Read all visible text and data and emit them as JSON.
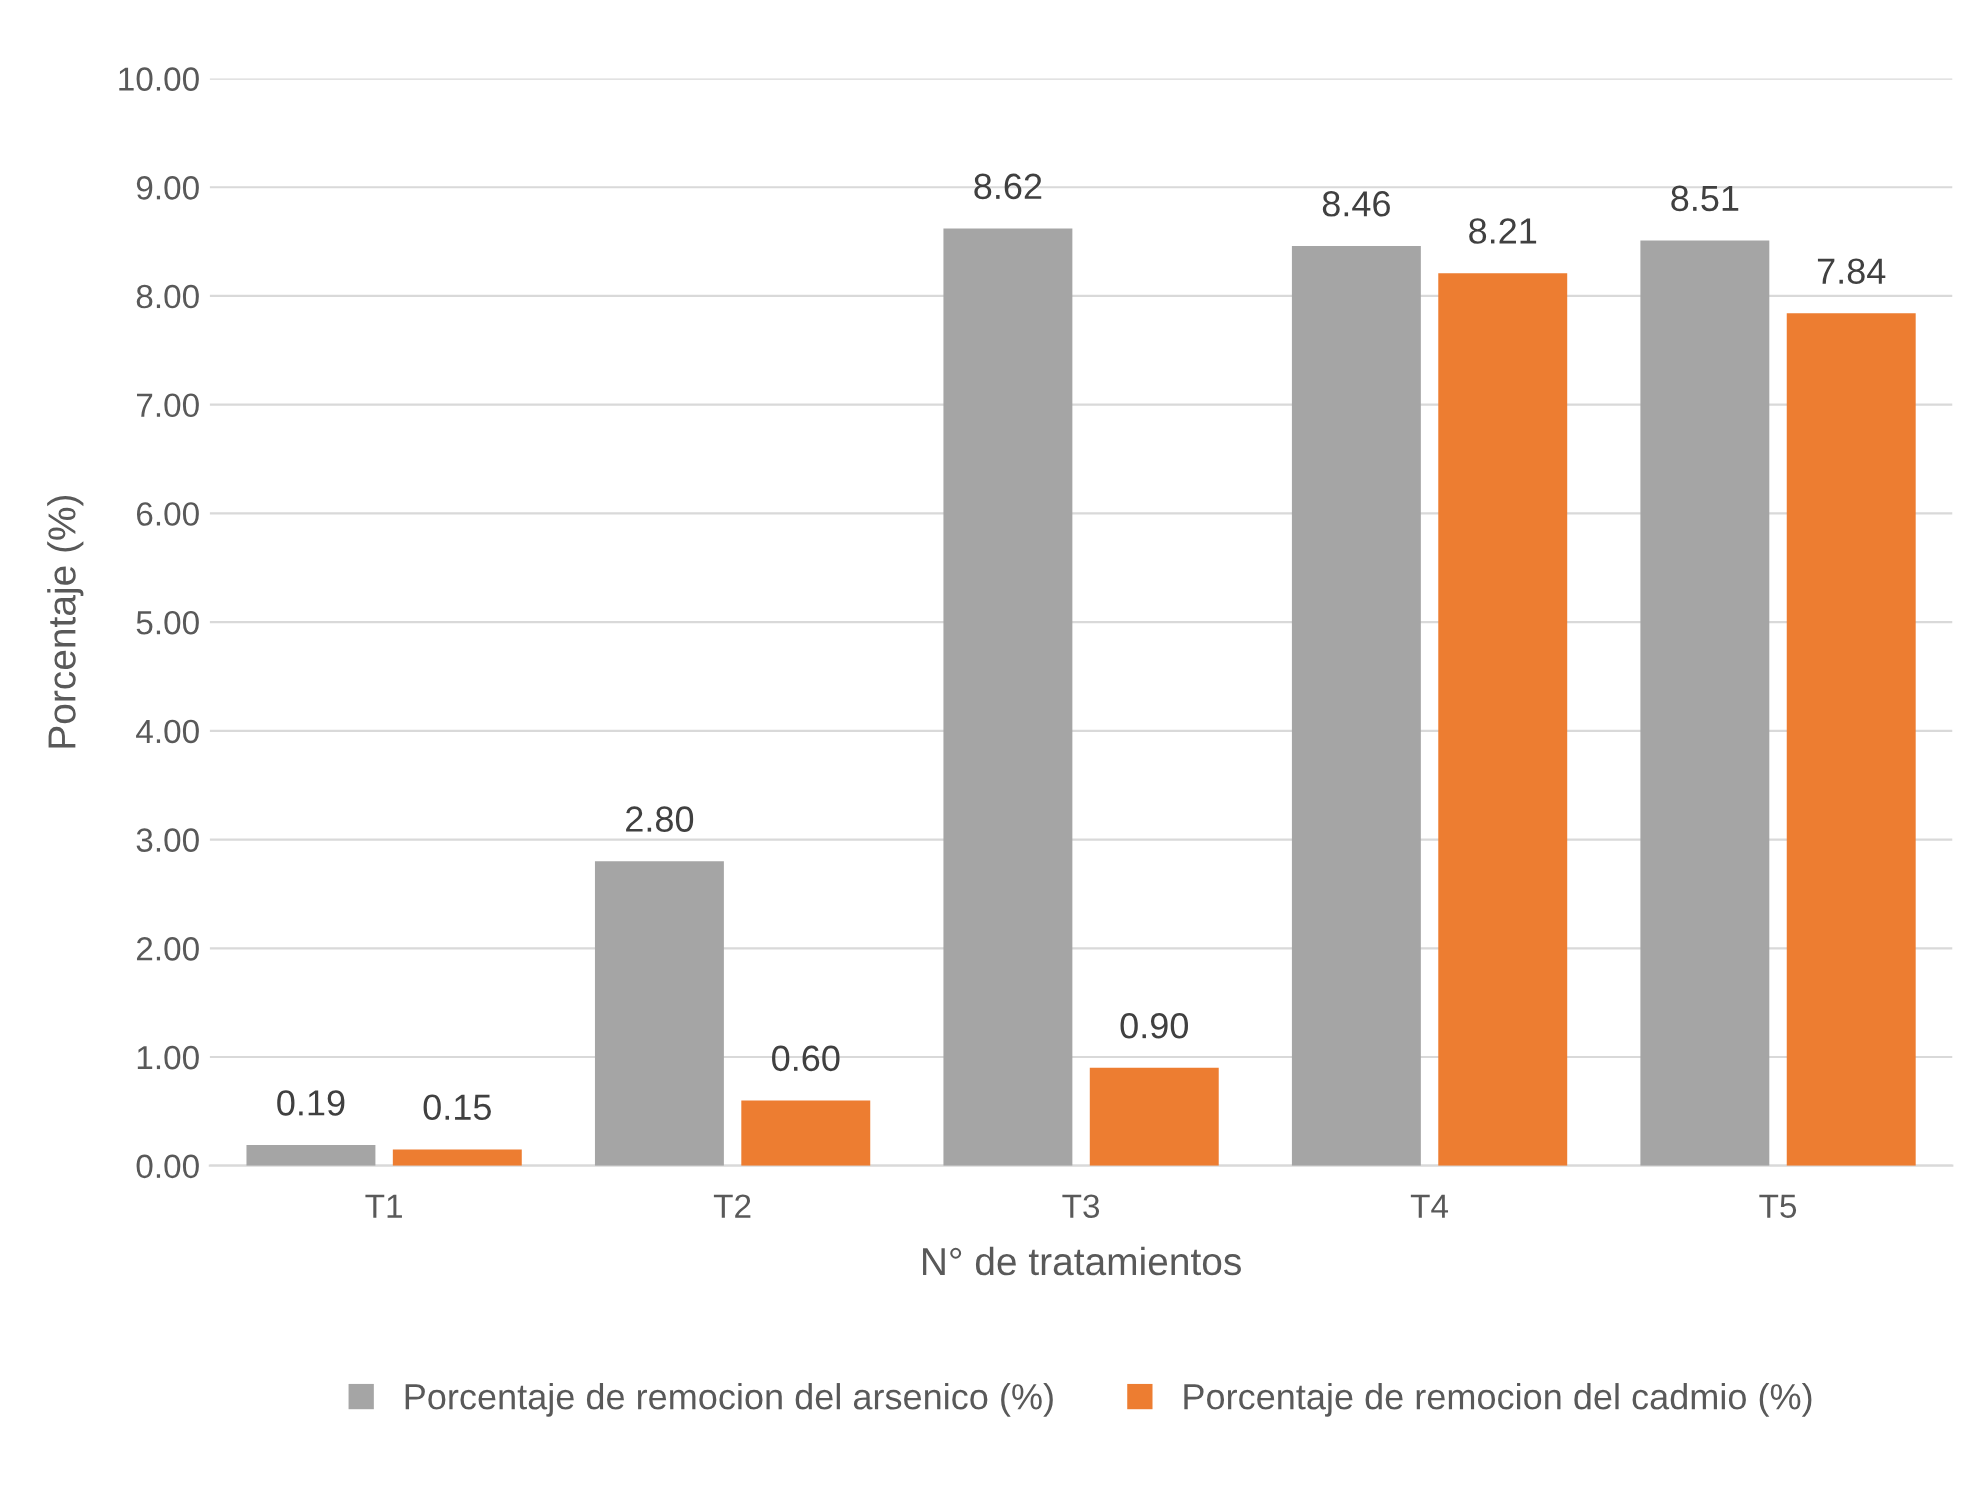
{
  "chart_data": {
    "type": "bar",
    "xlabel": "N° de tratamientos",
    "ylabel": "Porcentaje (%)",
    "categories": [
      "T1",
      "T2",
      "T3",
      "T4",
      "T5"
    ],
    "series": [
      {
        "name": "Porcentaje de remocion del arsenico (%)",
        "color": "#a5a5a5",
        "values": [
          0.19,
          2.8,
          8.62,
          8.46,
          8.51
        ],
        "value_labels": [
          "0.19",
          "2.80",
          "8.62",
          "8.46",
          "8.51"
        ]
      },
      {
        "name": "Porcentaje de remocion del cadmio (%)",
        "color": "#ed7d31",
        "values": [
          0.15,
          0.6,
          0.9,
          8.21,
          7.84
        ],
        "value_labels": [
          "0.15",
          "0.60",
          "0.90",
          "8.21",
          "7.84"
        ]
      }
    ],
    "ylim": [
      0,
      10
    ],
    "yticks": [
      {
        "value": 0,
        "label": "0.00"
      },
      {
        "value": 1,
        "label": "1.00"
      },
      {
        "value": 2,
        "label": "2.00"
      },
      {
        "value": 3,
        "label": "3.00"
      },
      {
        "value": 4,
        "label": "4.00"
      },
      {
        "value": 5,
        "label": "5.00"
      },
      {
        "value": 6,
        "label": "6.00"
      },
      {
        "value": 7,
        "label": "7.00"
      },
      {
        "value": 8,
        "label": "8.00"
      },
      {
        "value": 9,
        "label": "9.00"
      },
      {
        "value": 10,
        "label": "10.00"
      }
    ],
    "grid": "y",
    "legend": "bottom"
  }
}
